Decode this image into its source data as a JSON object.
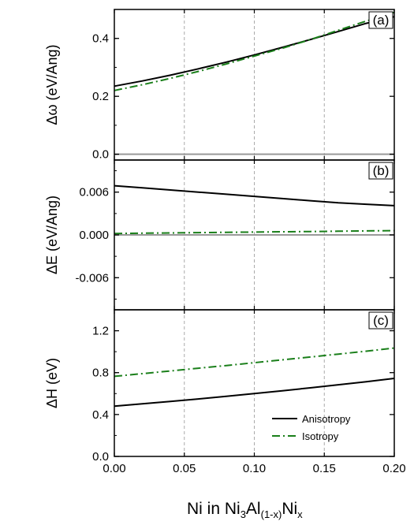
{
  "figure": {
    "xlabel_main": "Ni in Ni",
    "xlabel_sub1": "3",
    "xlabel_mid": "Al",
    "xlabel_sub2": "(1-x)",
    "xlabel_end": "Ni",
    "xlabel_sub3": "x"
  },
  "chart_data": [
    {
      "type": "line",
      "panel_label": "(a)",
      "ylabel": "Δω (eV/Ang)",
      "xlim": [
        0.0,
        0.2
      ],
      "ylim": [
        -0.02,
        0.5
      ],
      "yticks": [
        "0.0",
        "0.2",
        "0.4"
      ],
      "ytick_values": [
        0.0,
        0.2,
        0.4
      ],
      "x": [
        0.0,
        0.02,
        0.04,
        0.06,
        0.08,
        0.1,
        0.12,
        0.14,
        0.16,
        0.18,
        0.2
      ],
      "series": [
        {
          "name": "Anisotropy",
          "values": [
            0.235,
            0.253,
            0.273,
            0.295,
            0.318,
            0.343,
            0.369,
            0.396,
            0.424,
            0.452,
            0.475
          ],
          "color": "#000000",
          "dash": "solid"
        },
        {
          "name": "Isotropy",
          "values": [
            0.22,
            0.24,
            0.262,
            0.286,
            0.312,
            0.339,
            0.366,
            0.396,
            0.428,
            0.46,
            0.49
          ],
          "color": "#1a7f1a",
          "dash": "dashdot"
        }
      ],
      "zero_line": true
    },
    {
      "type": "line",
      "panel_label": "(b)",
      "ylabel": "ΔE (eV/Ang)",
      "xlim": [
        0.0,
        0.2
      ],
      "ylim": [
        -0.0105,
        0.0105
      ],
      "yticks": [
        "0.006",
        "0.000",
        "-0.006"
      ],
      "ytick_values": [
        0.006,
        0.0,
        -0.006
      ],
      "x": [
        0.0,
        0.02,
        0.04,
        0.06,
        0.08,
        0.1,
        0.12,
        0.14,
        0.16,
        0.18,
        0.2
      ],
      "series": [
        {
          "name": "Anisotropy",
          "values": [
            0.0069,
            0.0066,
            0.0063,
            0.006,
            0.0057,
            0.0054,
            0.0051,
            0.0048,
            0.0045,
            0.0043,
            0.0041
          ],
          "color": "#000000",
          "dash": "solid"
        },
        {
          "name": "Isotropy",
          "values": [
            0.0002,
            0.00024,
            0.00028,
            0.00032,
            0.00036,
            0.0004,
            0.00044,
            0.00048,
            0.00052,
            0.00056,
            0.0006
          ],
          "color": "#1a7f1a",
          "dash": "dashdot"
        }
      ],
      "zero_line": true
    },
    {
      "type": "line",
      "panel_label": "(c)",
      "ylabel": "ΔH (eV)",
      "xlim": [
        0.0,
        0.2
      ],
      "ylim": [
        0.0,
        1.4
      ],
      "yticks": [
        "1.2",
        "0.8",
        "0.4",
        "0.0"
      ],
      "ytick_values": [
        1.2,
        0.8,
        0.4,
        0.0
      ],
      "xticks": [
        "0.00",
        "0.05",
        "0.10",
        "0.15",
        "0.20"
      ],
      "xtick_values": [
        0.0,
        0.05,
        0.1,
        0.15,
        0.2
      ],
      "x": [
        0.0,
        0.02,
        0.04,
        0.06,
        0.08,
        0.1,
        0.12,
        0.14,
        0.16,
        0.18,
        0.2
      ],
      "series": [
        {
          "name": "Anisotropy",
          "values": [
            0.48,
            0.502,
            0.525,
            0.549,
            0.574,
            0.6,
            0.627,
            0.655,
            0.684,
            0.713,
            0.745
          ],
          "color": "#000000",
          "dash": "solid"
        },
        {
          "name": "Isotropy",
          "values": [
            0.765,
            0.79,
            0.816,
            0.842,
            0.868,
            0.895,
            0.922,
            0.949,
            0.977,
            1.005,
            1.035
          ],
          "color": "#1a7f1a",
          "dash": "dashdot"
        }
      ],
      "legend": {
        "placement": "bottom-right",
        "entries": [
          "Anisotropy",
          "Isotropy"
        ]
      }
    }
  ],
  "colors": {
    "zero_line": "#999999",
    "grid": "#aaaaaa",
    "anisotropy": "#000000",
    "isotropy": "#1a7f1a"
  }
}
